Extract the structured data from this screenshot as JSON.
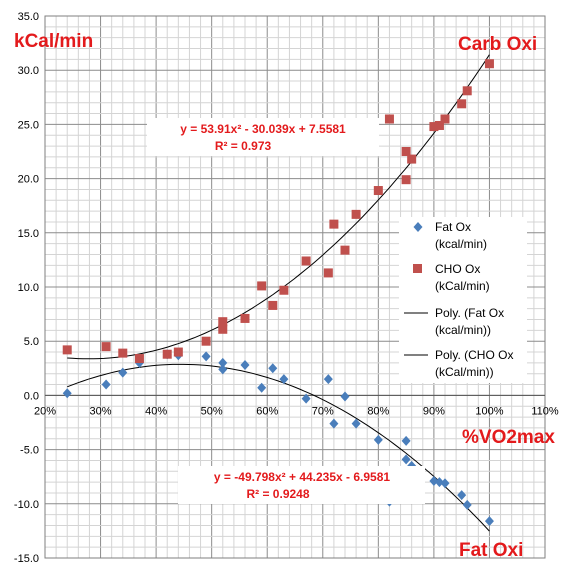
{
  "chart_data": {
    "type": "scatter",
    "title": "",
    "xlabel": "%VO2max",
    "ylabel": "kCal/min",
    "xlim": [
      0.2,
      1.1
    ],
    "ylim": [
      -15,
      35
    ],
    "x_ticks": [
      "20%",
      "30%",
      "40%",
      "50%",
      "60%",
      "70%",
      "80%",
      "90%",
      "100%",
      "110%"
    ],
    "y_ticks": [
      "-15.0",
      "-10.0",
      "-5.0",
      "0.0",
      "5.0",
      "10.0",
      "15.0",
      "20.0",
      "25.0",
      "30.0",
      "35.0"
    ],
    "grid": true,
    "legend_position": "right",
    "annotations": {
      "carb": "Carb Oxi",
      "fat": "Fat Oxi",
      "carb_eq": "y = 53.91x² - 30.039x + 7.5581",
      "carb_r2": "R² = 0.973",
      "fat_eq": "y = -49.798x² + 44.235x - 6.9581",
      "fat_r2": "R² = 0.9248"
    },
    "legend": {
      "fat": [
        "Fat Ox",
        "(kcal/min)"
      ],
      "cho": [
        "CHO Ox",
        "(kCal/min)"
      ],
      "fat_poly": [
        "Poly. (Fat Ox",
        "(kcal/min))"
      ],
      "cho_poly": [
        "Poly. (CHO Ox",
        "(kCal/min))"
      ]
    },
    "series": [
      {
        "name": "Fat Ox (kcal/min)",
        "color": "#4a7ebb",
        "marker": "diamond",
        "points": [
          [
            0.24,
            0.2
          ],
          [
            0.31,
            1.0
          ],
          [
            0.34,
            2.1
          ],
          [
            0.37,
            3.0
          ],
          [
            0.42,
            3.8
          ],
          [
            0.44,
            3.7
          ],
          [
            0.49,
            3.6
          ],
          [
            0.52,
            3.0
          ],
          [
            0.52,
            2.4
          ],
          [
            0.56,
            2.8
          ],
          [
            0.59,
            0.7
          ],
          [
            0.61,
            2.5
          ],
          [
            0.63,
            1.5
          ],
          [
            0.67,
            -0.3
          ],
          [
            0.71,
            1.5
          ],
          [
            0.72,
            -2.6
          ],
          [
            0.74,
            -0.1
          ],
          [
            0.76,
            -2.6
          ],
          [
            0.8,
            -4.1
          ],
          [
            0.82,
            -9.8
          ],
          [
            0.85,
            -4.2
          ],
          [
            0.85,
            -5.9
          ],
          [
            0.86,
            -6.5
          ],
          [
            0.9,
            -7.9
          ],
          [
            0.91,
            -8.0
          ],
          [
            0.92,
            -8.1
          ],
          [
            0.95,
            -9.2
          ],
          [
            0.96,
            -10.1
          ],
          [
            1.0,
            -11.6
          ]
        ]
      },
      {
        "name": "CHO Ox (kCal/min)",
        "color": "#c0504d",
        "marker": "square",
        "points": [
          [
            0.24,
            4.2
          ],
          [
            0.31,
            4.5
          ],
          [
            0.34,
            3.9
          ],
          [
            0.37,
            3.4
          ],
          [
            0.42,
            3.8
          ],
          [
            0.44,
            4.0
          ],
          [
            0.49,
            5.0
          ],
          [
            0.52,
            6.1
          ],
          [
            0.52,
            6.8
          ],
          [
            0.56,
            7.1
          ],
          [
            0.59,
            10.1
          ],
          [
            0.61,
            8.3
          ],
          [
            0.63,
            9.7
          ],
          [
            0.67,
            12.4
          ],
          [
            0.71,
            11.3
          ],
          [
            0.72,
            15.8
          ],
          [
            0.74,
            13.4
          ],
          [
            0.76,
            16.7
          ],
          [
            0.8,
            18.9
          ],
          [
            0.82,
            25.5
          ],
          [
            0.85,
            19.9
          ],
          [
            0.85,
            22.5
          ],
          [
            0.86,
            21.8
          ],
          [
            0.9,
            24.8
          ],
          [
            0.91,
            24.9
          ],
          [
            0.92,
            25.5
          ],
          [
            0.95,
            26.9
          ],
          [
            0.96,
            28.1
          ],
          [
            1.0,
            30.6
          ]
        ]
      }
    ],
    "trendlines": [
      {
        "name": "Poly. (Fat Ox (kcal/min))",
        "coeffs": [
          -49.798,
          44.235,
          -6.9581
        ],
        "x_range": [
          0.24,
          1.0
        ]
      },
      {
        "name": "Poly. (CHO Ox (kCal/min))",
        "coeffs": [
          53.91,
          -30.039,
          7.5581
        ],
        "x_range": [
          0.24,
          1.0
        ]
      }
    ]
  }
}
